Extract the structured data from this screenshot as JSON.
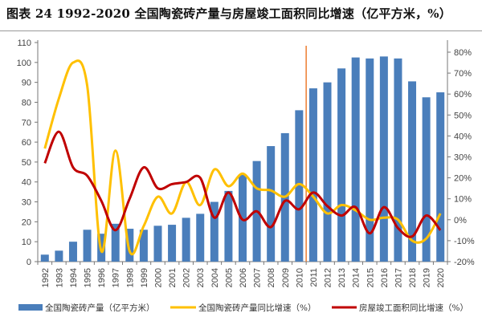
{
  "chart_data": {
    "type": "bar+line",
    "title": "图表 24 1992-2020 全国陶瓷砖产量与房屋竣工面积同比增速（亿平方米，%）",
    "categories": [
      "1992",
      "1993",
      "1994",
      "1995",
      "1996",
      "1997",
      "1998",
      "1999",
      "2000",
      "2001",
      "2002",
      "2003",
      "2004",
      "2005",
      "2006",
      "2007",
      "2008",
      "2009",
      "2010",
      "2011",
      "2012",
      "2013",
      "2014",
      "2015",
      "2016",
      "2017",
      "2018",
      "2019",
      "2020"
    ],
    "y_left": {
      "range": [
        0,
        110
      ],
      "ticks": [
        0,
        10,
        20,
        30,
        40,
        50,
        60,
        70,
        80,
        90,
        100,
        110
      ]
    },
    "y_right": {
      "range": [
        -20,
        80
      ],
      "ticks": [
        "-20%",
        "-10%",
        "0%",
        "10%",
        "20%",
        "30%",
        "40%",
        "50%",
        "60%",
        "70%",
        "80%"
      ]
    },
    "grid": false,
    "legend_position": "bottom",
    "marker_line_after": "2010",
    "series": [
      {
        "name": "全国陶瓷砖产量（亿平方米）",
        "type": "bar",
        "axis": "left",
        "color": "#4a7ebb",
        "values": [
          3.5,
          5.5,
          10,
          16,
          14,
          19,
          16.5,
          16,
          18,
          18.5,
          22,
          24,
          30,
          35.5,
          43.5,
          50.5,
          58,
          64.5,
          76,
          87,
          90,
          97,
          102.5,
          102,
          103,
          102,
          90.5,
          82.5,
          85
        ]
      },
      {
        "name": "全国陶瓷砖产量同比增速（%）",
        "type": "line",
        "axis": "right",
        "color": "#ffc000",
        "values": [
          34,
          58,
          75,
          64,
          -15,
          33,
          -15,
          -3,
          11,
          3,
          18,
          7,
          24,
          16,
          22,
          15,
          14,
          11,
          17,
          11,
          3,
          7,
          4.5,
          0,
          1,
          0,
          -10,
          -9,
          3
        ]
      },
      {
        "name": "房屋竣工面积同比增速（%）",
        "type": "line",
        "axis": "right",
        "color": "#c00000",
        "values": [
          27,
          42,
          25,
          21,
          9,
          -5,
          10,
          25,
          15,
          17,
          18,
          20,
          1,
          13,
          0,
          4,
          -3.5,
          9,
          5,
          13,
          6.5,
          2,
          6,
          -6.5,
          6,
          -4,
          -8,
          2,
          -5
        ]
      }
    ],
    "marker_line_color": "#ed7d31"
  }
}
